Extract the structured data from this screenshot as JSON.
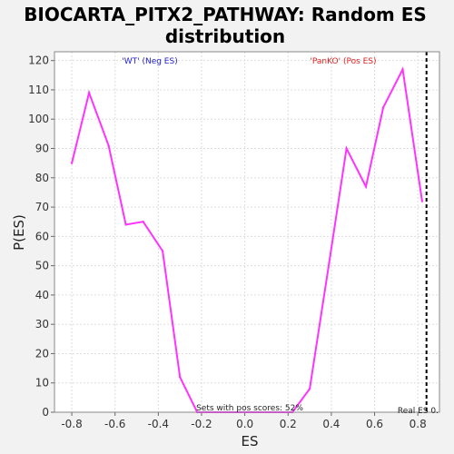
{
  "chart_data": {
    "type": "line",
    "title_line1": "BIOCARTA_PITX2_PATHWAY: Random ES",
    "title_line2": "distribution",
    "xlabel": "ES",
    "ylabel": "P(ES)",
    "xlim": [
      -0.88,
      0.9
    ],
    "ylim": [
      0,
      123
    ],
    "xticks": [
      -0.8,
      -0.6,
      -0.4,
      -0.2,
      0.0,
      0.2,
      0.4,
      0.6,
      0.8
    ],
    "xtick_labels": [
      "-0.8",
      "-0.6",
      "-0.4",
      "-0.2",
      "0.0",
      "0.2",
      "0.4",
      "0.6",
      "0.8"
    ],
    "yticks": [
      0,
      10,
      20,
      30,
      40,
      50,
      60,
      70,
      80,
      90,
      100,
      110,
      120
    ],
    "grid": true,
    "series": [
      {
        "color": "#ff33ff",
        "x": [
          -0.8,
          -0.72,
          -0.63,
          -0.55,
          -0.47,
          -0.38,
          -0.3,
          -0.22,
          0.0,
          0.22,
          0.3,
          0.39,
          0.47,
          0.56,
          0.64,
          0.73,
          0.82
        ],
        "y": [
          85,
          109,
          91,
          64,
          65,
          55,
          12,
          0,
          0,
          0,
          8,
          51,
          90,
          77,
          104,
          117,
          72
        ]
      }
    ],
    "real_es_x": 0.84,
    "annotations": {
      "neg_label": "'WT' (Neg ES)",
      "neg_color": "#2222cc",
      "pos_label": "'PanKO' (Pos ES)",
      "pos_color": "#dd2222",
      "pos_scores": "Sets with pos scores: 52%",
      "real_es": "Real ES 0."
    }
  }
}
